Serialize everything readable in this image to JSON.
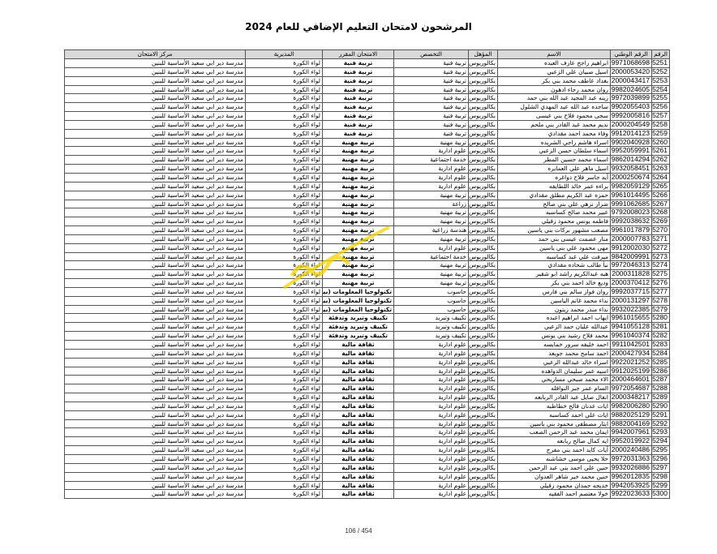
{
  "title": "المرشحون لامتحان التعليم الإضافي للعام 2024",
  "columns": [
    "الرقم",
    "الرقم الوطني",
    "الاسم",
    "المؤهل",
    "التخصص",
    "الامتحان المقرر",
    "المديرية",
    "مركز الامتحان"
  ],
  "rows": [
    [
      "5251",
      "9971068698",
      "ابراهيم راجح عارف العبده",
      "بكالوريوس",
      "تربية فنية",
      "تربية فنية",
      "لواء الكورة",
      "مدرسة دير ابي سعيد الأساسية للبنين"
    ],
    [
      "5252",
      "2000053420",
      "اسيل صبيان علي الزعبي",
      "بكالوريوس",
      "تربية فنية",
      "تربية فنية",
      "لواء الكورة",
      "مدرسة دير ابي سعيد الأساسية للبنين"
    ],
    [
      "5253",
      "2000043417",
      "بغداد عاطف محمد بني بكر",
      "بكالوريوس",
      "تربية فنية",
      "تربية فنية",
      "لواء الكورة",
      "مدرسة دير ابي سعيد الأساسية للبنين"
    ],
    [
      "5254",
      "9982024605",
      "روان محمد رجاء ادهون",
      "بكالوريوس",
      "تربية فنية",
      "تربية فنية",
      "لواء الكورة",
      "مدرسة دير ابي سعيد الأساسية للبنين"
    ],
    [
      "5255",
      "9972039899",
      "زينه عبد المجيد عبد الله بني حمد",
      "بكالوريوس",
      "تربية فنية",
      "تربية فنية",
      "لواء الكورة",
      "مدرسة دير ابي سعيد الأساسية للبنين"
    ],
    [
      "5256",
      "9902055403",
      "ساجده عبد الله عبد المهدي الشلول",
      "بكالوريوس",
      "تربية فنية",
      "تربية فنية",
      "لواء الكورة",
      "مدرسة دير ابي سعيد الأساسية للبنين"
    ],
    [
      "5257",
      "9992005816",
      "سجى محمود فلاح بني عيسى",
      "بكالوريوس",
      "تربية فنية",
      "تربية فنية",
      "لواء الكورة",
      "مدرسة دير ابي سعيد الأساسية للبنين"
    ],
    [
      "5258",
      "2000204549",
      "نديم محمد عبد القادر بني ملحم",
      "بكالوريوس",
      "تربية فنية",
      "تربية فنية",
      "لواء الكورة",
      "مدرسة دير ابي سعيد الأساسية للبنين"
    ],
    [
      "5259",
      "9912014123",
      "وفاء محمد احمد مقدادي",
      "بكالوريوس",
      "تربية فنية",
      "تربية فنية",
      "لواء الكورة",
      "مدرسة دير ابي سعيد الأساسية للبنين"
    ],
    [
      "5260",
      "9902040928",
      "اسراء هاشم راجي الشريده",
      "بكالوريوس",
      "تربية مهنية",
      "تربية مهنية",
      "لواء الكورة",
      "مدرسة دير ابي سعيد الأساسية للبنين"
    ],
    [
      "5261",
      "9952059991",
      "اسماء سلطان حسن الزعبي",
      "بكالوريوس",
      "علوم ادارية",
      "تربية مهنية",
      "لواء الكورة",
      "مدرسة دير ابي سعيد الأساسية للبنين"
    ],
    [
      "5262",
      "9862014294",
      "اسماء محمد حسين المطر",
      "بكالوريوس",
      "خدمة اجتماعية",
      "تربية مهنية",
      "لواء الكورة",
      "مدرسة دير ابي سعيد الأساسية للبنين"
    ],
    [
      "5263",
      "9932058451",
      "اسيل ماهر علي العمايره",
      "بكالوريوس",
      "علوم ادارية",
      "تربية مهنية",
      "لواء الكورة",
      "مدرسة دير ابي سعيد الأساسية للبنين"
    ],
    [
      "5264",
      "2000250674",
      "آيه جاسر فلاح دواغره",
      "بكالوريوس",
      "علوم ادارية",
      "تربية مهنية",
      "لواء الكورة",
      "مدرسة دير ابي سعيد الأساسية للبنين"
    ],
    [
      "5265",
      "9982059129",
      "براءه عمر خالد اللطايفه",
      "بكالوريوس",
      "علوم ادارية",
      "تربية مهنية",
      "لواء الكورة",
      "مدرسة دير ابي سعيد الأساسية للبنين"
    ],
    [
      "5266",
      "9961014495",
      "حمزه عبد الكريم مطلق مقدادي",
      "بكالوريوس",
      "تربية مهنية",
      "تربية مهنية",
      "لواء الكورة",
      "مدرسة دير ابي سعيد الأساسية للبنين"
    ],
    [
      "5267",
      "9991062685",
      "ضرار نزهي علي بني صالح",
      "بكالوريوس",
      "زراعة",
      "تربية مهنية",
      "لواء الكورة",
      "مدرسة دير ابي سعيد الأساسية للبنين"
    ],
    [
      "5268",
      "9792008023",
      "عبير محمد صالح كساسبه",
      "بكالوريوس",
      "تربية مهنية",
      "تربية مهنية",
      "لواء الكورة",
      "مدرسة دير ابي سعيد الأساسية للبنين"
    ],
    [
      "5269",
      "9992038632",
      "فاطمه يونس محمود زقيلي",
      "بكالوريوس",
      "تربية مهنية",
      "تربية مهنية",
      "لواء الكورة",
      "مدرسة دير ابي سعيد الأساسية للبنين"
    ],
    [
      "5270",
      "9961017879",
      "مصعب مشهور بركات بني ياسين",
      "بكالوريوس",
      "هندسة زراعية",
      "تربية مهنية",
      "لواء الكورة",
      "مدرسة دير ابي سعيد الأساسية للبنين"
    ],
    [
      "5271",
      "2000007783",
      "منار عصمت عيسى بني حمد",
      "بكالوريوس",
      "تربية مهنية",
      "تربية مهنية",
      "لواء الكورة",
      "مدرسة دير ابي سعيد الأساسية للبنين"
    ],
    [
      "5272",
      "9912002030",
      "مهى محمود علي بني ياسين",
      "بكالوريوس",
      "علوم ادارية",
      "تربية مهنية",
      "لواء الكورة",
      "مدرسة دير ابي سعيد الأساسية للبنين"
    ],
    [
      "5273",
      "9842009991",
      "ميرفت علي عبد كساسبه",
      "بكالوريوس",
      "خدمة اجتماعية",
      "تربية مهنية",
      "لواء الكورة",
      "مدرسة دير ابي سعيد الأساسية للبنين"
    ],
    [
      "5274",
      "9972046313",
      "نبأ طالب شحاده مقدادي",
      "بكالوريوس",
      "تربية مهنية",
      "تربية مهنية",
      "لواء الكورة",
      "مدرسة دير ابي سعيد الأساسية للبنين"
    ],
    [
      "5275",
      "2000311828",
      "هبه عبدالكريم راشد ابو شقير",
      "بكالوريوس",
      "تربية مهنية",
      "تربية مهنية",
      "لواء الكورة",
      "مدرسة دير ابي سعيد الأساسية للبنين"
    ],
    [
      "5276",
      "2000370412",
      "وديع خالد احمد بني بكر",
      "بكالوريوس",
      "تربية مهنية",
      "تربية مهنية",
      "لواء الكورة",
      "مدرسة دير ابي سعيد الأساسية للبنين"
    ],
    [
      "5277",
      "9992037715",
      "روان فواز سالم بني فارس",
      "بكالوريوس",
      "حاسوب",
      "تكنولوجيا المعلومات (بيتك)",
      "لواء الكورة",
      "مدرسة دير ابي سعيد الأساسية للبنين"
    ],
    [
      "5278",
      "2000131297",
      "نداء محمد غانم الياسين",
      "بكالوريوس",
      "حاسوب",
      "تكنولوجيا المعلومات (بيتك)",
      "لواء الكورة",
      "مدرسة دير ابي سعيد الأساسية للبنين"
    ],
    [
      "5279",
      "9932022385",
      "نداء منذر محمد زيتون",
      "بكالوريوس",
      "حاسوب",
      "تكنولوجيا المعلومات (بيتك)",
      "لواء الكورة",
      "مدرسة دير ابي سعيد الأساسية للبنين"
    ],
    [
      "5280",
      "9961015655",
      "ايهاب احمد ابراهيم اعبده",
      "بكالوريوس",
      "تكييف وتبريد",
      "تكييف وتبريد وتدفئة",
      "لواء الكورة",
      "مدرسة دير ابي سعيد الأساسية للبنين"
    ],
    [
      "5281",
      "9941055128",
      "عبدالله عليان حمد الزعبي",
      "بكالوريوس",
      "تكييف وتبريد",
      "تكييف وتبريد وتدفئة",
      "لواء الكورة",
      "مدرسة دير ابي سعيد الأساسية للبنين"
    ],
    [
      "5282",
      "9961040374",
      "محمد فلاح رشيد بني يونس",
      "بكالوريوس",
      "تكييف وتبريد",
      "تكييف وتبريد وتدفئة",
      "لواء الكورة",
      "مدرسة دير ابي سعيد الأساسية للبنين"
    ],
    [
      "5283",
      "9911042501",
      "احمد خليفه سرور خمايسه",
      "بكالوريوس",
      "علوم ادارية",
      "ثقافة مالية",
      "لواء الكورة",
      "مدرسة دير ابي سعيد الأساسية للبنين"
    ],
    [
      "5284",
      "2000427934",
      "احمد سامح محمد جويعد",
      "بكالوريوس",
      "علوم ادارية",
      "ثقافة مالية",
      "لواء الكورة",
      "مدرسة دير ابي سعيد الأساسية للبنين"
    ],
    [
      "5285",
      "9922021252",
      "اسراء خالد عبدالله الزعبي",
      "بكالوريوس",
      "علوم ادارية",
      "ثقافة مالية",
      "لواء الكورة",
      "مدرسة دير ابي سعيد الأساسية للبنين"
    ],
    [
      "5286",
      "9912025199",
      "اسيه عمر سليمان الدواهده",
      "بكالوريوس",
      "علوم ادارية",
      "ثقافة مالية",
      "لواء الكورة",
      "مدرسة دير ابي سعيد الأساسية للبنين"
    ],
    [
      "5287",
      "2000464601",
      "الاء محمد صبحي مساريحي",
      "بكالوريوس",
      "علوم ادارية",
      "ثقافة مالية",
      "لواء الكورة",
      "مدرسة دير ابي سعيد الأساسية للبنين"
    ],
    [
      "5288",
      "9972054687",
      "السام عمر جبر النوافله",
      "بكالوريوس",
      "علوم ادارية",
      "ثقافة مالية",
      "لواء الكورة",
      "مدرسة دير ابي سعيد الأساسية للبنين"
    ],
    [
      "5289",
      "2000348217",
      "انفال صايل عبد القادر الربابعه",
      "بكالوريوس",
      "علوم ادارية",
      "ثقافة مالية",
      "لواء الكورة",
      "مدرسة دير ابي سعيد الأساسية للبنين"
    ],
    [
      "5290",
      "9982006280",
      "ايات عدنان فالح خطاطبه",
      "بكالوريوس",
      "علوم ادارية",
      "ثقافة مالية",
      "لواء الكورة",
      "مدرسة دير ابي سعيد الأساسية للبنين"
    ],
    [
      "5291",
      "9882025129",
      "ايات علي احمد كساسبه",
      "بكالوريوس",
      "علوم ادارية",
      "ثقافة مالية",
      "لواء الكورة",
      "مدرسة دير ابي سعيد الأساسية للبنين"
    ],
    [
      "5292",
      "9882004169",
      "ايثار مصطفى محمود بني ياسين",
      "بكالوريوس",
      "علوم ادارية",
      "ثقافة مالية",
      "لواء الكورة",
      "مدرسة دير ابي سعيد الأساسية للبنين"
    ],
    [
      "5293",
      "9942007961",
      "ايمان محمد عبد الرحمن الصعب",
      "بكالوريوس",
      "علوم ادارية",
      "ثقافة مالية",
      "لواء الكورة",
      "مدرسة دير ابي سعيد الأساسية للبنين"
    ],
    [
      "5294",
      "9952019922",
      "ايه كمال صالح ربابعه",
      "بكالوريوس",
      "علوم ادارية",
      "ثقافة مالية",
      "لواء الكورة",
      "مدرسة دير ابي سعيد الأساسية للبنين"
    ],
    [
      "5295",
      "2000240486",
      "آيات كايد احمد بني مفرج",
      "بكالوريوس",
      "علوم ادارية",
      "ثقافة مالية",
      "لواء الكورة",
      "مدرسة دير ابي سعيد الأساسية للبنين"
    ],
    [
      "5296",
      "9972031363",
      "حلا يحيى موسى خشاشنه",
      "بكالوريوس",
      "علوم ادارية",
      "ثقافة مالية",
      "لواء الكورة",
      "مدرسة دير ابي سعيد الأساسية للبنين"
    ],
    [
      "5297",
      "9932026886",
      "حنين علي احمد بني عبد الرحمن",
      "بكالوريوس",
      "علوم ادارية",
      "ثقافة مالية",
      "لواء الكورة",
      "مدرسة دير ابي سعيد الأساسية للبنين"
    ],
    [
      "5298",
      "9962012835",
      "حنين محمد خير شاهر العدوان",
      "بكالوريوس",
      "علوم ادارية",
      "ثقافة مالية",
      "لواء الكورة",
      "مدرسة دير ابي سعيد الأساسية للبنين"
    ],
    [
      "5299",
      "9942053925",
      "خديجه حمدان محمود زقيلي",
      "بكالوريوس",
      "علوم ادارية",
      "ثقافة مالية",
      "لواء الكورة",
      "مدرسة دير ابي سعيد الأساسية للبنين"
    ],
    [
      "5300",
      "9922023633",
      "خولا معتصم احمد الفقيه",
      "بكالوريوس",
      "علوم ادارية",
      "ثقافة مالية",
      "لواء الكورة",
      "مدرسة دير ابي سعيد الأساسية للبنين"
    ]
  ],
  "footer": {
    "page": "106 / 454"
  },
  "watermark_color": "#f5d400"
}
